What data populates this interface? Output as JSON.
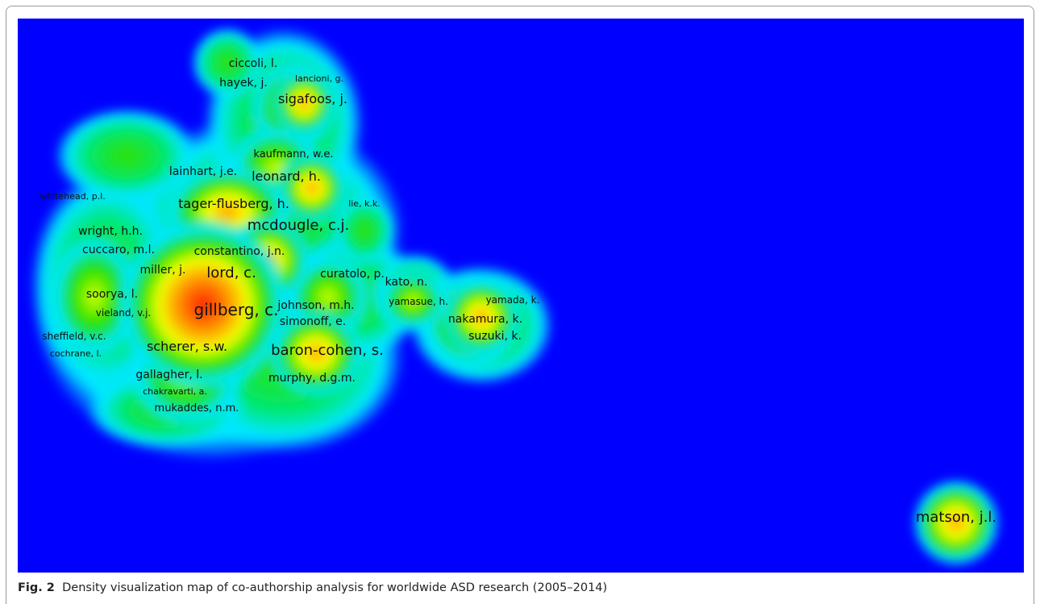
{
  "figure": {
    "label": "Fig. 2",
    "caption": "Density visualization map of co-authorship analysis for worldwide ASD research (2005–2014)"
  },
  "map": {
    "background_color": "#0000ff",
    "colors": {
      "low": "#00e8ff",
      "mid": "#00e000",
      "high": "#ffff00",
      "peak": "#ff0000"
    },
    "authors": [
      "ciccoli, l.",
      "hayek, j.",
      "lancioni, g.",
      "sigafoos, j.",
      "kaufmann, w.e.",
      "lainhart, j.e.",
      "leonard, h.",
      "whitehead, p.l.",
      "tager-flusberg, h.",
      "lie, k.k.",
      "mcdougle, c.j.",
      "wright, h.h.",
      "cuccaro, m.l.",
      "constantino, j.n.",
      "miller, j.",
      "lord, c.",
      "curatolo, p.",
      "kato, n.",
      "soorya, l.",
      "yamasue, h.",
      "yamada, k.",
      "gillberg, c.",
      "johnson, m.h.",
      "vieland, v.j.",
      "nakamura, k.",
      "simonoff, e.",
      "sheffield, v.c.",
      "suzuki, k.",
      "scherer, s.w.",
      "baron-cohen, s.",
      "cochrane, l.",
      "gallagher, l.",
      "murphy, d.g.m.",
      "chakravarti, a.",
      "mukaddes, n.m.",
      "matson, j.l."
    ]
  }
}
